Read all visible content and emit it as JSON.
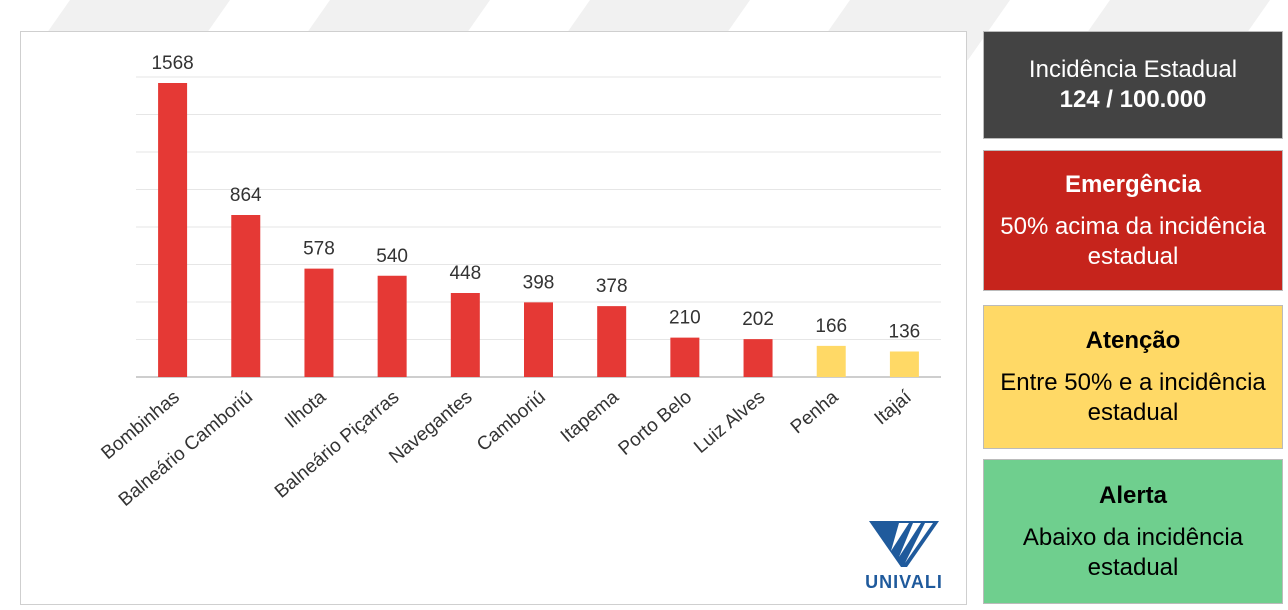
{
  "chart_data": {
    "type": "bar",
    "categories": [
      "Bombinhas",
      "Balneário Camboriú",
      "Ilhota",
      "Balneário Piçarras",
      "Navegantes",
      "Camboriú",
      "Itapema",
      "Porto Belo",
      "Luiz Alves",
      "Penha",
      "Itajaí"
    ],
    "values": [
      1568,
      864,
      578,
      540,
      448,
      398,
      378,
      210,
      202,
      166,
      136
    ],
    "bar_colors": [
      "#e53935",
      "#e53935",
      "#e53935",
      "#e53935",
      "#e53935",
      "#e53935",
      "#e53935",
      "#e53935",
      "#e53935",
      "#ffd966",
      "#ffd966"
    ],
    "ylim": [
      0,
      1600
    ],
    "grid": true,
    "title": "",
    "xlabel": "",
    "ylabel": ""
  },
  "logo": {
    "name": "univali-logo",
    "text": "UNIVALI",
    "color": "#1f5a9c"
  },
  "legend": {
    "state": {
      "title": "Incidência Estadual",
      "text": "124 / 100.000",
      "color": "#434343"
    },
    "emergency": {
      "title": "Emergência",
      "text": "50% acima da incidência estadual",
      "color": "#c6241c"
    },
    "attention": {
      "title": "Atenção",
      "text": "Entre 50% e a incidência estadual",
      "color": "#ffd966"
    },
    "alert": {
      "title": "Alerta",
      "text": "Abaixo da incidência estadual",
      "color": "#6fcf8e"
    }
  }
}
